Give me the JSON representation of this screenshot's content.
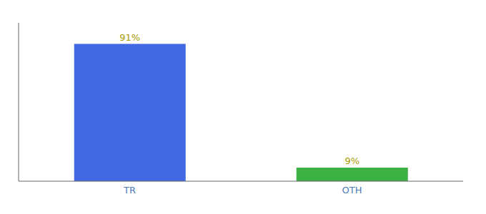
{
  "chart_data": {
    "type": "bar",
    "categories": [
      "TR",
      "OTH"
    ],
    "values": [
      91,
      9
    ],
    "value_labels": [
      "91%",
      "9%"
    ],
    "colors": [
      "#4169E1",
      "#3CB043"
    ],
    "ylim": [
      0,
      105
    ],
    "data_labels": true,
    "tick_labels": "x"
  }
}
